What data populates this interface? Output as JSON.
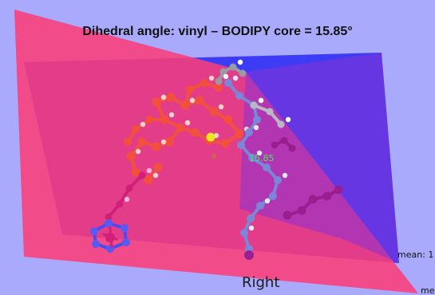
{
  "figure": {
    "title": "Dihedral angle:  vinyl – BODIPY core = 15.85°",
    "angle_readout": "15.85",
    "view_label": "Right",
    "mean_label_1": "mean: 1",
    "mean_label_2": "mea"
  },
  "colors": {
    "background_lavender": "#a9aafb",
    "plane_blue": "#3c3cf5",
    "plane_pink": "#fb3d7a",
    "overlap_purple": "#8a31d4",
    "fragment_red": "#f2503c",
    "fragment_grey_blue": "#7a86d8",
    "fragment_violet": "#9a1f8e",
    "ring_magenta": "#d0207a",
    "boron_yellow": "#e8e820",
    "readout_green": "#4ee36a"
  },
  "icons": [
    "molecule-render",
    "plane-blue",
    "plane-pink"
  ]
}
